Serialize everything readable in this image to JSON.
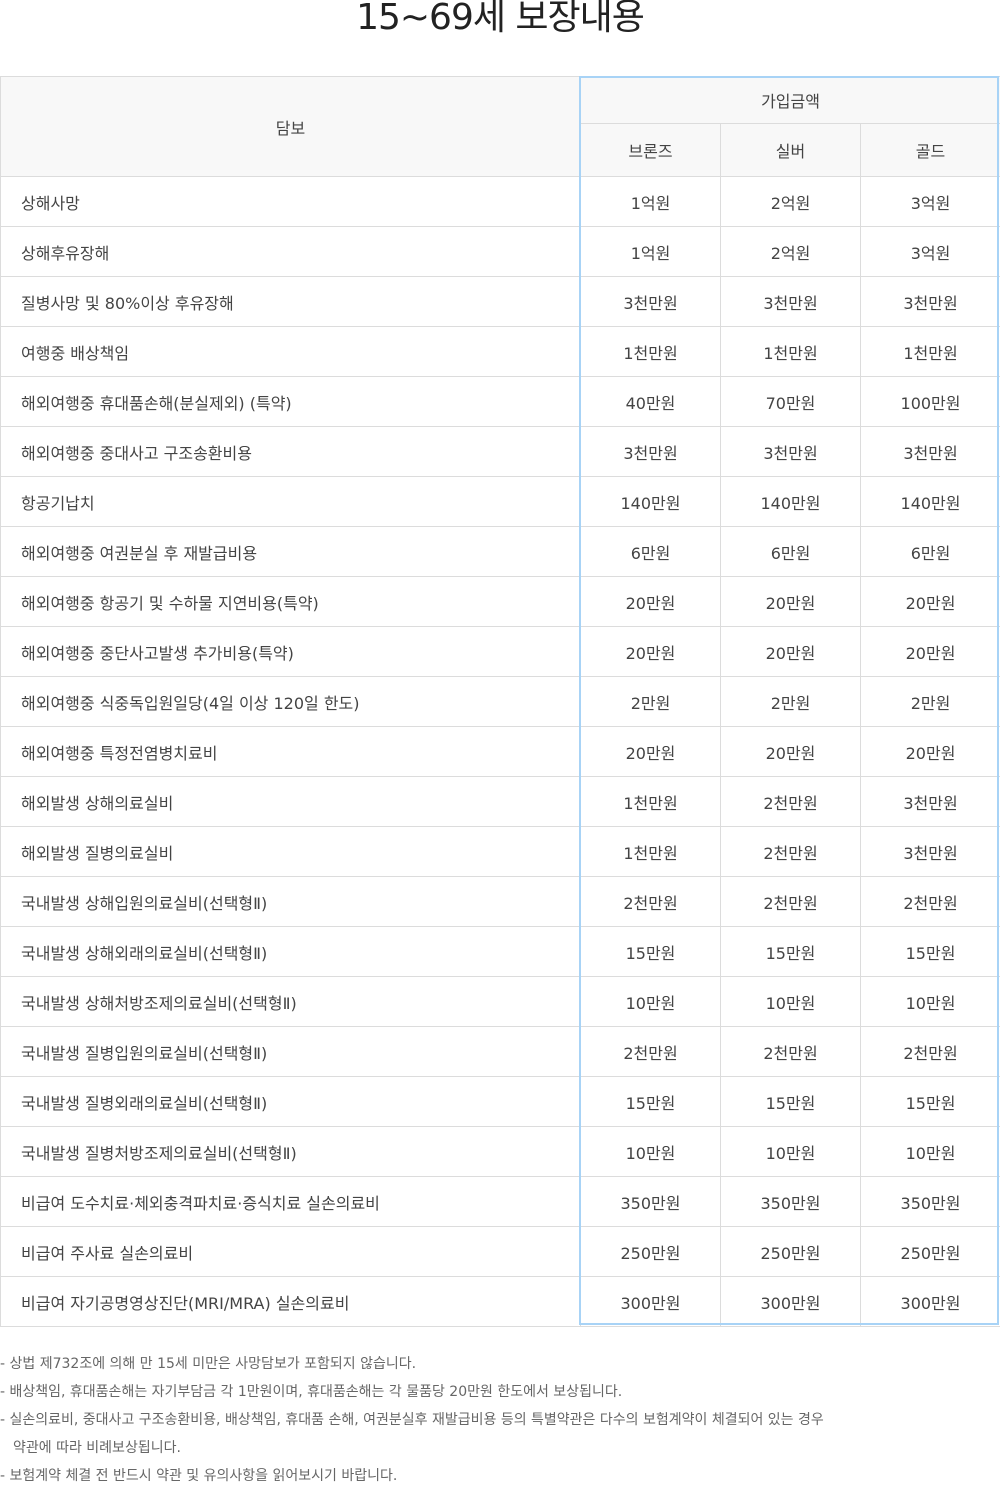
{
  "title": "15~69세 보장내용",
  "table": {
    "header": {
      "coverage": "담보",
      "amount": "가입금액",
      "plans": [
        "브론즈",
        "실버",
        "골드"
      ]
    },
    "rows": [
      {
        "name": "상해사망",
        "values": [
          "1억원",
          "2억원",
          "3억원"
        ]
      },
      {
        "name": "상해후유장해",
        "values": [
          "1억원",
          "2억원",
          "3억원"
        ]
      },
      {
        "name": "질병사망 및 80%이상 후유장해",
        "values": [
          "3천만원",
          "3천만원",
          "3천만원"
        ]
      },
      {
        "name": "여행중 배상책임",
        "values": [
          "1천만원",
          "1천만원",
          "1천만원"
        ]
      },
      {
        "name": "해외여행중 휴대품손해(분실제외) (특약)",
        "values": [
          "40만원",
          "70만원",
          "100만원"
        ]
      },
      {
        "name": "해외여행중 중대사고 구조송환비용",
        "values": [
          "3천만원",
          "3천만원",
          "3천만원"
        ]
      },
      {
        "name": "항공기납치",
        "values": [
          "140만원",
          "140만원",
          "140만원"
        ]
      },
      {
        "name": "해외여행중 여권분실 후 재발급비용",
        "values": [
          "6만원",
          "6만원",
          "6만원"
        ]
      },
      {
        "name": "해외여행중 항공기 및 수하물 지연비용(특약)",
        "values": [
          "20만원",
          "20만원",
          "20만원"
        ]
      },
      {
        "name": "해외여행중 중단사고발생 추가비용(특약)",
        "values": [
          "20만원",
          "20만원",
          "20만원"
        ]
      },
      {
        "name": "해외여행중 식중독입원일당(4일 이상 120일 한도)",
        "values": [
          "2만원",
          "2만원",
          "2만원"
        ]
      },
      {
        "name": "해외여행중 특정전염병치료비",
        "values": [
          "20만원",
          "20만원",
          "20만원"
        ]
      },
      {
        "name": "해외발생 상해의료실비",
        "values": [
          "1천만원",
          "2천만원",
          "3천만원"
        ]
      },
      {
        "name": "해외발생 질병의료실비",
        "values": [
          "1천만원",
          "2천만원",
          "3천만원"
        ]
      },
      {
        "name": "국내발생 상해입원의료실비(선택형Ⅱ)",
        "values": [
          "2천만원",
          "2천만원",
          "2천만원"
        ]
      },
      {
        "name": "국내발생 상해외래의료실비(선택형Ⅱ)",
        "values": [
          "15만원",
          "15만원",
          "15만원"
        ]
      },
      {
        "name": "국내발생 상해처방조제의료실비(선택형Ⅱ)",
        "values": [
          "10만원",
          "10만원",
          "10만원"
        ]
      },
      {
        "name": "국내발생 질병입원의료실비(선택형Ⅱ)",
        "values": [
          "2천만원",
          "2천만원",
          "2천만원"
        ]
      },
      {
        "name": "국내발생 질병외래의료실비(선택형Ⅱ)",
        "values": [
          "15만원",
          "15만원",
          "15만원"
        ]
      },
      {
        "name": "국내발생 질병처방조제의료실비(선택형Ⅱ)",
        "values": [
          "10만원",
          "10만원",
          "10만원"
        ]
      },
      {
        "name": "비급여 도수치료·체외충격파치료·증식치료 실손의료비",
        "values": [
          "350만원",
          "350만원",
          "350만원"
        ]
      },
      {
        "name": "비급여 주사료 실손의료비",
        "values": [
          "250만원",
          "250만원",
          "250만원"
        ]
      },
      {
        "name": "비급여 자기공명영상진단(MRI/MRA) 실손의료비",
        "values": [
          "300만원",
          "300만원",
          "300만원"
        ]
      }
    ]
  },
  "notes": [
    "- 상법 제732조에 의해 만 15세 미만은 사망담보가 포함되지 않습니다.",
    "- 배상책임, 휴대품손해는 자기부담금 각 1만원이며, 휴대품손해는 각 물품당 20만원 한도에서 보상됩니다.",
    "- 실손의료비, 중대사고 구조송환비용, 배상책임, 휴대품 손해, 여권분실후 재발급비용 등의 특별약관은 다수의 보험계약이 체결되어 있는 경우",
    "약관에 따라 비례보상됩니다.",
    "- 보험계약 체결 전 반드시 약관 및 유의사항을 읽어보시기 바랍니다."
  ],
  "colors": {
    "highlight_border": "#a8d3f6",
    "header_bg": "#f8f8f8",
    "grid": "#dcdcdc"
  }
}
